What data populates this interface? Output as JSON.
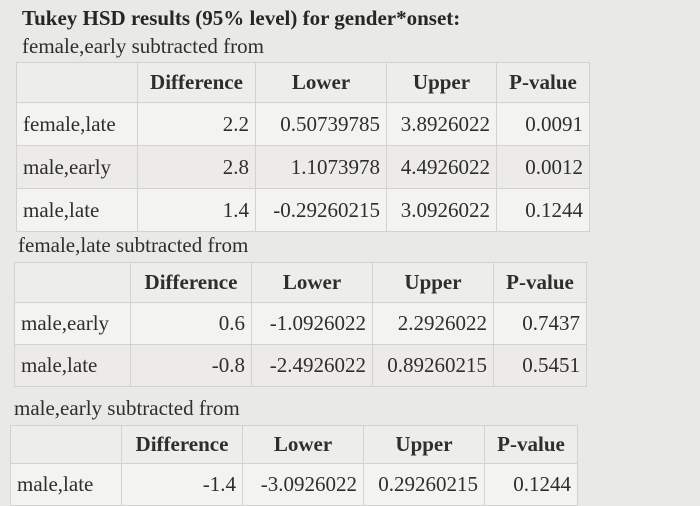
{
  "title": "Tukey HSD results (95% level) for gender*onset:",
  "columns": [
    "Difference",
    "Lower",
    "Upper",
    "P-value"
  ],
  "groups": [
    {
      "heading": "female,early subtracted from",
      "rows": [
        {
          "label": "female,late",
          "difference": "2.2",
          "lower": "0.50739785",
          "upper": "3.8926022",
          "p_value": "0.0091"
        },
        {
          "label": "male,early",
          "difference": "2.8",
          "lower": "1.1073978",
          "upper": "4.4926022",
          "p_value": "0.0012"
        },
        {
          "label": "male,late",
          "difference": "1.4",
          "lower": "-0.29260215",
          "upper": "3.0926022",
          "p_value": "0.1244"
        }
      ]
    },
    {
      "heading": "female,late subtracted from",
      "rows": [
        {
          "label": "male,early",
          "difference": "0.6",
          "lower": "-1.0926022",
          "upper": "2.2926022",
          "p_value": "0.7437"
        },
        {
          "label": "male,late",
          "difference": "-0.8",
          "lower": "-2.4926022",
          "upper": "0.89260215",
          "p_value": "0.5451"
        }
      ]
    },
    {
      "heading": "male,early subtracted from",
      "rows": [
        {
          "label": "male,late",
          "difference": "-1.4",
          "lower": "-3.0926022",
          "upper": "0.29260215",
          "p_value": "0.1244"
        }
      ]
    }
  ]
}
